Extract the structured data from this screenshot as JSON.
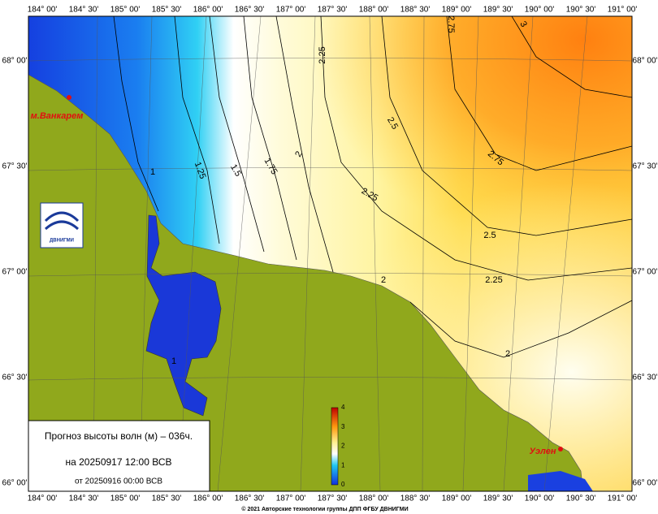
{
  "map": {
    "lon_labels": [
      "184° 00'",
      "184° 30'",
      "185° 00'",
      "185° 30'",
      "186° 00'",
      "186° 30'",
      "187° 00'",
      "187° 30'",
      "188° 00'",
      "188° 30'",
      "189° 00'",
      "189° 30'",
      "190° 00'",
      "190° 30'",
      "191° 00'"
    ],
    "lat_labels": [
      "68° 00'",
      "67° 30'",
      "67° 00'",
      "66° 30'",
      "66° 00'"
    ],
    "contour_labels": [
      "2.25",
      "2.75",
      "3",
      "2.5",
      "2",
      "1.75",
      "1.5",
      "1.25",
      "1",
      "2.25",
      "2.75",
      "2.5",
      "2.25",
      "2",
      "2",
      "1"
    ],
    "places": [
      "м.Ванкарем",
      "Уэлен"
    ],
    "logo_text": "ДВНИГМИ",
    "legend": {
      "title": "Прогноз высоты волн (м) – 036ч.",
      "valid": "на 20250917 12:00 ВСВ",
      "issued": "от 20250916 00:00 ВСВ"
    },
    "colorbar_ticks": [
      "0",
      "1",
      "2",
      "3",
      "4"
    ],
    "footer": "© 2021 Авторские технологии группы ДПП ФГБУ ДВНИГМИ"
  }
}
